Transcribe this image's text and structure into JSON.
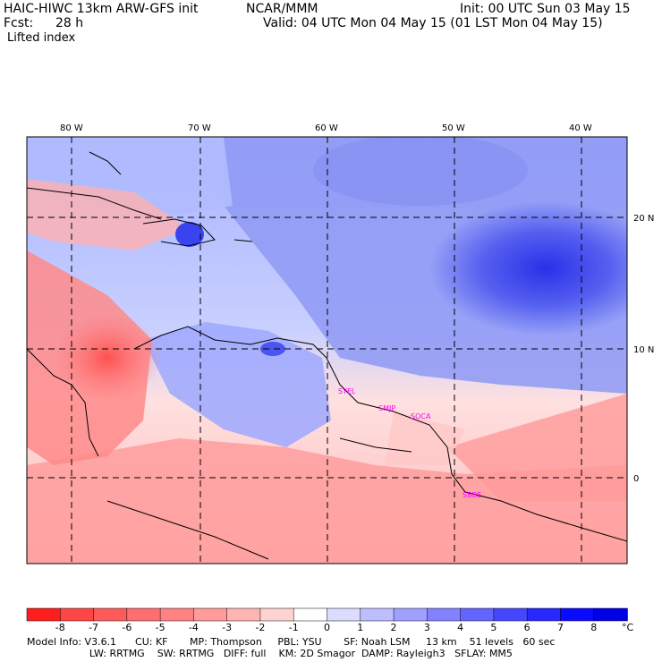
{
  "header": {
    "model": "HAIC-HIWC 13km ARW-GFS init",
    "org": "NCAR/MMM",
    "init": "Init: 00 UTC Sun 03 May 15",
    "fcst_label": "Fcst:",
    "fcst_value": "28 h",
    "valid": "Valid: 04 UTC Mon 04 May 15 (01 LST Mon 04 May 15)",
    "field": "Lifted index"
  },
  "map": {
    "lon_labels": [
      "80 W",
      "70 W",
      "60 W",
      "50 W",
      "40 W"
    ],
    "lat_labels": [
      "20 N",
      "10 N",
      "0"
    ],
    "stations": [
      "SYEL",
      "SMJP",
      "SOCA",
      "SBBE"
    ]
  },
  "colorbar": {
    "labels": [
      "-8",
      "-7",
      "-6",
      "-5",
      "-4",
      "-3",
      "-2",
      "-1",
      "0",
      "1",
      "2",
      "3",
      "4",
      "5",
      "6",
      "7",
      "8"
    ],
    "unit": "°C",
    "colors": [
      "#ff1e1e",
      "#ff4646",
      "#ff5a5a",
      "#ff6e6e",
      "#ff8282",
      "#ff9b9b",
      "#ffb4b4",
      "#ffd2d2",
      "#ffffff",
      "#dcdcff",
      "#bebeff",
      "#a0a0ff",
      "#8282ff",
      "#6464ff",
      "#4646ff",
      "#2828ff",
      "#0a0aff",
      "#0000e6"
    ]
  },
  "footer": {
    "line1": "Model Info: V3.6.1      CU: KF       MP: Thompson     PBL: YSU       SF: Noah LSM     13 km    51 levels   60 sec",
    "line2": "                    LW: RRTMG    SW: RRTMG   DIFF: full    KM: 2D Smagor  DAMP: Rayleigh3   SFLAY: MM5"
  }
}
